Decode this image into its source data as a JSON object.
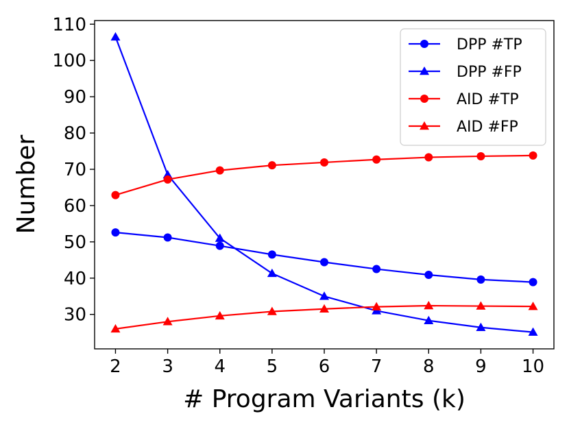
{
  "chart_data": {
    "type": "line",
    "title": "",
    "xlabel": "# Program Variants (k)",
    "ylabel": "Number",
    "x": [
      2,
      3,
      4,
      5,
      6,
      7,
      8,
      9,
      10
    ],
    "xlim": [
      1.6,
      10.4
    ],
    "ylim": [
      20.5,
      111
    ],
    "yticks": [
      30,
      40,
      50,
      60,
      70,
      80,
      90,
      100,
      110
    ],
    "grid": false,
    "legend_position": "top-right",
    "series": [
      {
        "name": "DPP #TP",
        "color": "#0000ff",
        "marker": "circle",
        "values": [
          52.6,
          51.2,
          48.9,
          46.5,
          44.4,
          42.5,
          40.9,
          39.6,
          38.9
        ]
      },
      {
        "name": "DPP #FP",
        "color": "#0000ff",
        "marker": "triangle",
        "values": [
          106.5,
          68.5,
          51.0,
          41.3,
          35.0,
          31.0,
          28.3,
          26.4,
          25.1
        ]
      },
      {
        "name": "AID #TP",
        "color": "#ff0000",
        "marker": "circle",
        "values": [
          62.9,
          67.2,
          69.7,
          71.1,
          71.9,
          72.7,
          73.3,
          73.6,
          73.8
        ]
      },
      {
        "name": "AID #FP",
        "color": "#ff0000",
        "marker": "triangle",
        "values": [
          26.0,
          28.0,
          29.6,
          30.8,
          31.5,
          32.1,
          32.4,
          32.3,
          32.2
        ]
      }
    ]
  }
}
